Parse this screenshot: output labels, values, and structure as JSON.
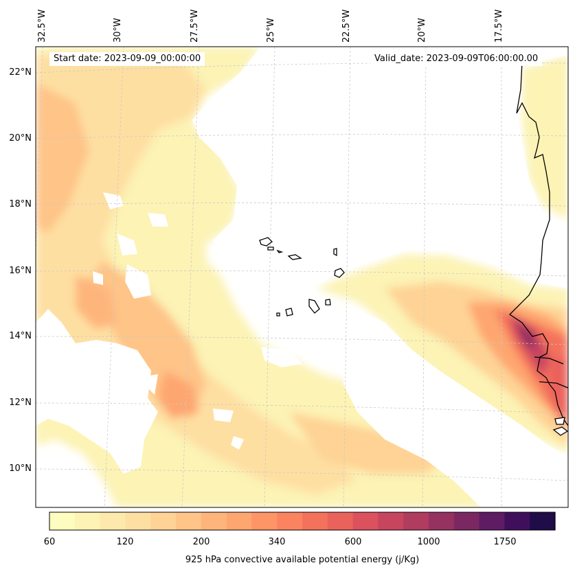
{
  "map": {
    "start_date": "Start date: 2023-09-09_00:00:00",
    "valid_date": "Valid_date: 2023-09-09T06:00:00.00",
    "lon_labels": [
      "32.5°W",
      "30°W",
      "27.5°W",
      "25°W",
      "22.5°W",
      "20°W",
      "17.5°W"
    ],
    "lat_labels": [
      "22°N",
      "20°N",
      "18°N",
      "16°N",
      "14°N",
      "12°N",
      "10°N"
    ],
    "coastline_color": "#000000",
    "gridline_color": "#c8c8c8"
  },
  "colorbar": {
    "label": "925 hPa convective available potential energy (j/Kg)",
    "tick_labels": [
      "60",
      "120",
      "200",
      "340",
      "600",
      "1000",
      "1750"
    ],
    "colors": [
      "#fcfdbf",
      "#fcf3b5",
      "#fde9ab",
      "#fedfa2",
      "#fed395",
      "#fec488",
      "#feb57b",
      "#fea670",
      "#fd9567",
      "#fa8460",
      "#f4725c",
      "#ea625c",
      "#dc515e",
      "#c8455f",
      "#b03c5f",
      "#963260",
      "#7b2862",
      "#5e1c63",
      "#400f5c",
      "#1f0c48"
    ],
    "colormap": "magma_r"
  }
}
